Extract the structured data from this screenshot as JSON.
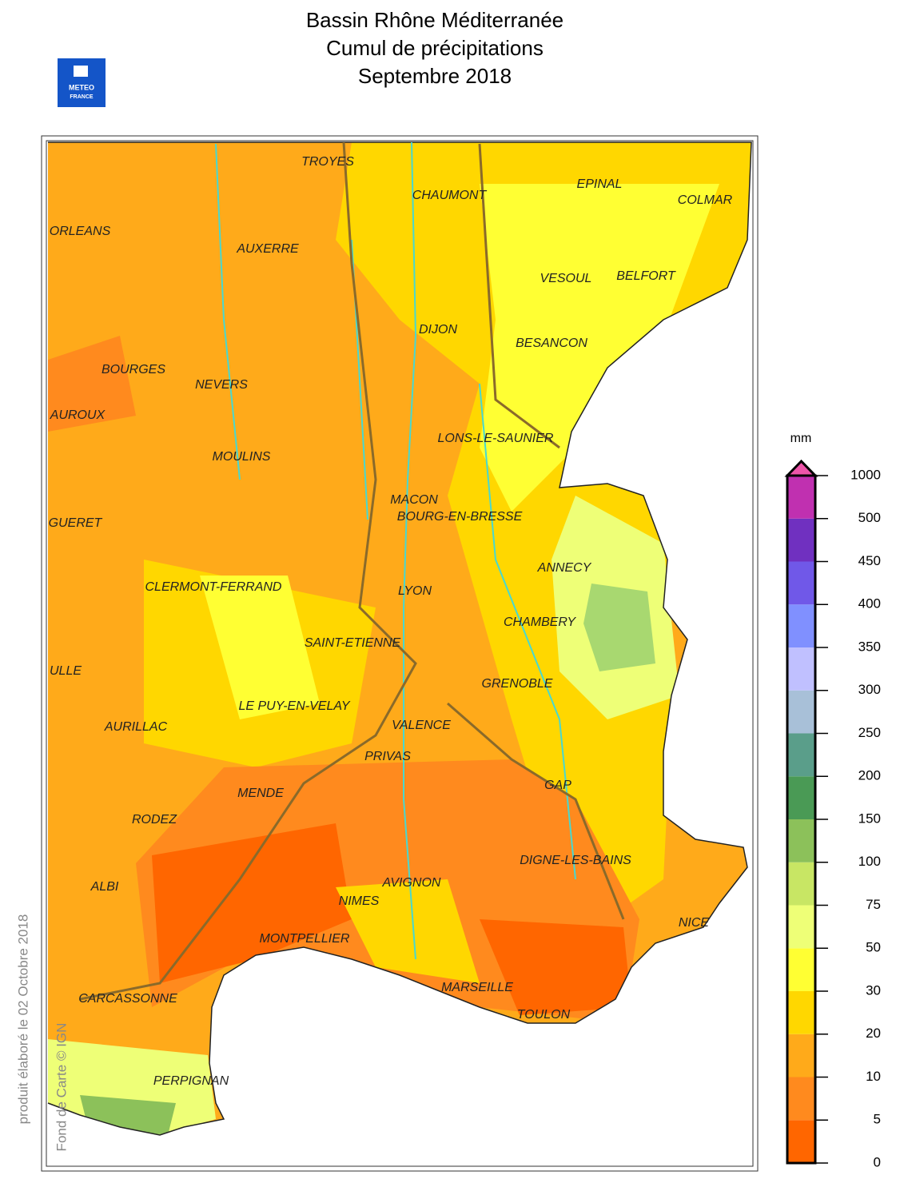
{
  "header": {
    "title_lines": [
      "Bassin Rhône Méditerranée",
      "Cumul de précipitations",
      "Septembre 2018"
    ],
    "logo": [
      "METEO",
      "FRANCE"
    ]
  },
  "side_notes": [
    "produit élaboré le 02 Octobre 2018",
    "Fond de Carte © IGN"
  ],
  "map": {
    "cities": [
      "TROYES",
      "CHAUMONT",
      "EPINAL",
      "COLMAR",
      "ORLEANS",
      "AUXERRE",
      "VESOUL",
      "BELFORT",
      "DIJON",
      "BESANCON",
      "BOURGES",
      "NEVERS",
      "AUROUX",
      "LONS-LE-SAUNIER",
      "MOULINS",
      "MACON",
      "BOURG-EN-BRESSE",
      "GUERET",
      "ANNECY",
      "CLERMONT-FERRAND",
      "LYON",
      "CHAMBERY",
      "SAINT-ETIENNE",
      "ULLE",
      "GRENOBLE",
      "LE PUY-EN-VELAY",
      "AURILLAC",
      "VALENCE",
      "PRIVAS",
      "GAP",
      "MENDE",
      "RODEZ",
      "DIGNE-LES-BAINS",
      "AVIGNON",
      "ALBI",
      "NIMES",
      "NICE",
      "MONTPELLIER",
      "MARSEILLE",
      "CARCASSONNE",
      "TOULON",
      "PERPIGNAN"
    ]
  },
  "legend": {
    "unit": "mm",
    "ticks": [
      0,
      5,
      10,
      20,
      30,
      50,
      75,
      100,
      150,
      200,
      250,
      300,
      350,
      400,
      450,
      500,
      1000
    ],
    "colors": [
      "#ff6600",
      "#ff8a1e",
      "#ffaa1a",
      "#ffd700",
      "#ffff33",
      "#eeff77",
      "#c8e664",
      "#8cc15a",
      "#4a9a55",
      "#5a9e8a",
      "#a8c0d8",
      "#c0c0ff",
      "#8090ff",
      "#7058e8",
      "#7030c0",
      "#c030b0"
    ],
    "over_color": "#ee55aa"
  }
}
